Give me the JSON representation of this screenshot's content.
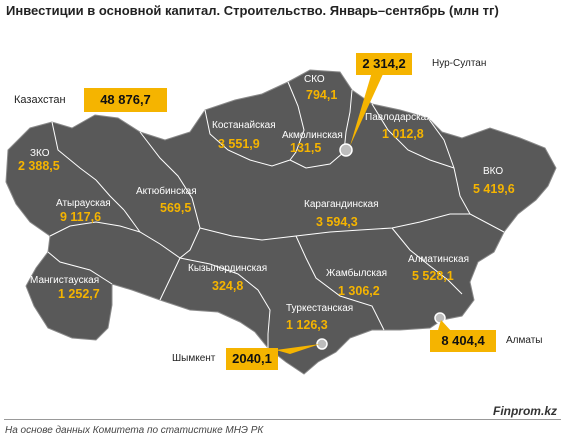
{
  "title": "Инвестиции в основной капитал. Строительство. Январь–сентябрь (млн тг)",
  "country": {
    "label": "Казахстан",
    "value": "48 876,7"
  },
  "regions": [
    {
      "id": "zko",
      "name": "ЗКО",
      "value": "2 388,5"
    },
    {
      "id": "atyrau",
      "name": "Атырауская",
      "value": "9 117,6"
    },
    {
      "id": "mangystau",
      "name": "Мангистауская",
      "value": "1 252,7"
    },
    {
      "id": "aktobe",
      "name": "Актюбинская",
      "value": "569,5"
    },
    {
      "id": "kostanay",
      "name": "Костанайская",
      "value": "3 551,9"
    },
    {
      "id": "sko",
      "name": "СКО",
      "value": "794,1"
    },
    {
      "id": "akmola",
      "name": "Акмолинская",
      "value": "131,5"
    },
    {
      "id": "pavlodar",
      "name": "Павлодарская",
      "value": "1 012,8"
    },
    {
      "id": "vko",
      "name": "ВКО",
      "value": "5 419,6"
    },
    {
      "id": "karaganda",
      "name": "Карагандинская",
      "value": "3 594,3"
    },
    {
      "id": "kyzylorda",
      "name": "Кызылординская",
      "value": "324,8"
    },
    {
      "id": "zhambyl",
      "name": "Жамбылская",
      "value": "1 306,2"
    },
    {
      "id": "almaty_obl",
      "name": "Алматинская",
      "value": "5 528,1"
    },
    {
      "id": "turkestan",
      "name": "Туркестанская",
      "value": "1 126,3"
    }
  ],
  "cities": [
    {
      "id": "nur_sultan",
      "name": "Нур-Султан",
      "value": "2 314,2"
    },
    {
      "id": "almaty",
      "name": "Алматы",
      "value": "8 404,4"
    },
    {
      "id": "shymkent",
      "name": "Шымкент",
      "value": "2040,1"
    }
  ],
  "colors": {
    "land": "#595959",
    "border": "#ffffff",
    "accent": "#f5b400",
    "background": "#ffffff"
  },
  "footer": {
    "brand": "Finprom.kz",
    "source": "На основе данных  Комитета по статистике МНЭ РК"
  }
}
